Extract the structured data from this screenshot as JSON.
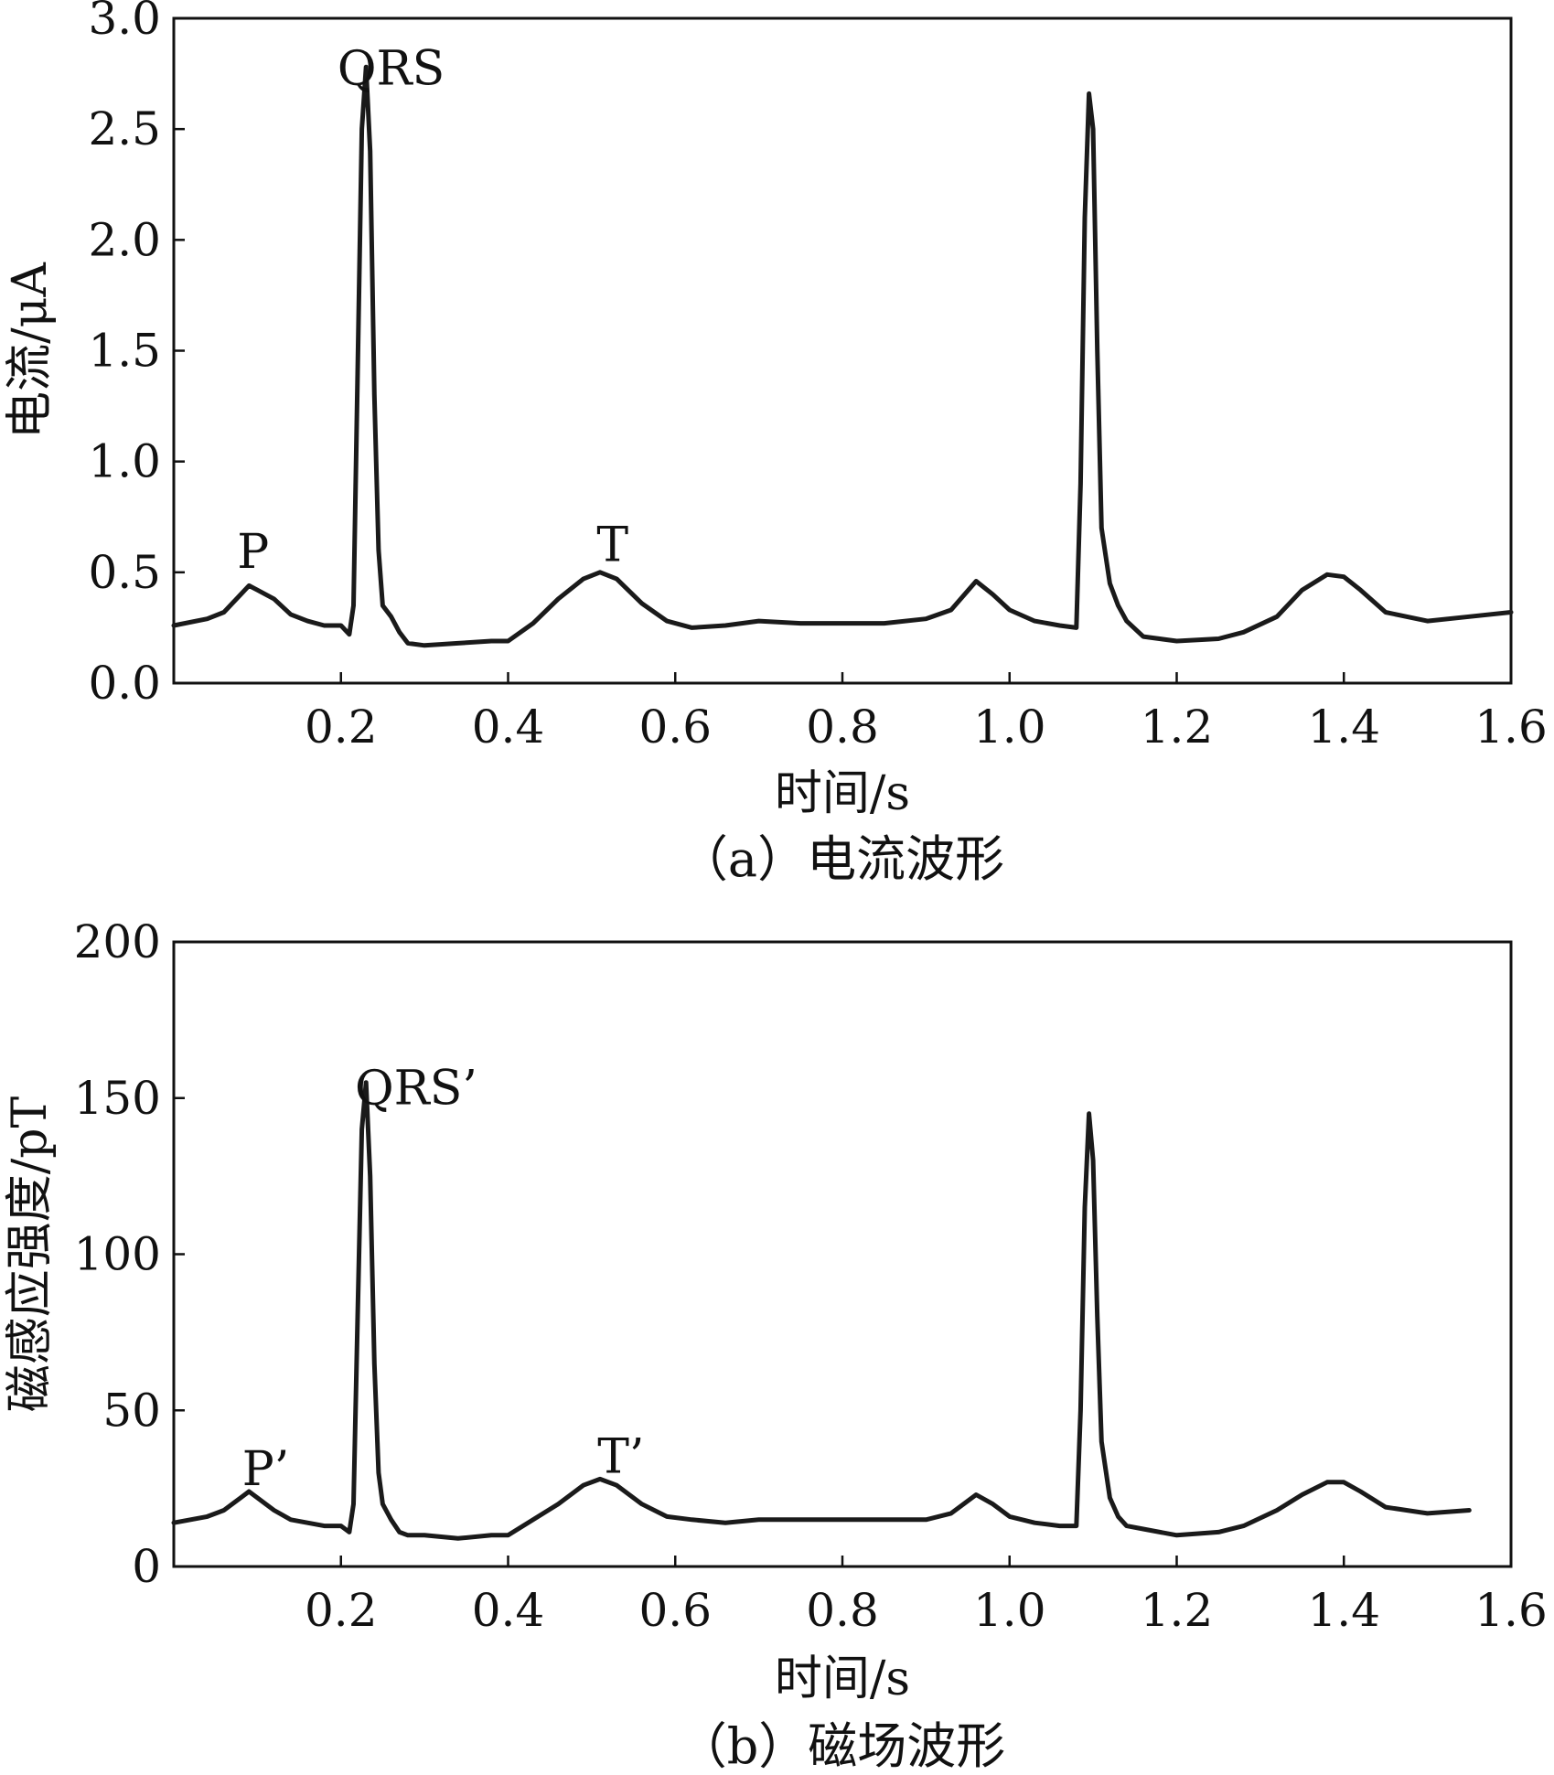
{
  "chart_data": [
    {
      "type": "line",
      "caption": "（a）电流波形",
      "xlabel": "时间/s",
      "ylabel": "电流/μA",
      "xlim": [
        0,
        1.6
      ],
      "ylim": [
        0,
        3.0
      ],
      "xticks": [
        0.2,
        0.4,
        0.6,
        0.8,
        1.0,
        1.2,
        1.4,
        1.6
      ],
      "xtick_labels": [
        "0.2",
        "0.4",
        "0.6",
        "0.8",
        "1.0",
        "1.2",
        "1.4",
        "1.6"
      ],
      "yticks": [
        0.0,
        0.5,
        1.0,
        1.5,
        2.0,
        2.5,
        3.0
      ],
      "ytick_labels": [
        "0.0",
        "0.5",
        "1.0",
        "1.5",
        "2.0",
        "2.5",
        "3.0"
      ],
      "grid": false,
      "annotations": [
        {
          "text": "P",
          "x": 0.095,
          "y": 0.52
        },
        {
          "text": "QRS",
          "x": 0.26,
          "y": 2.7
        },
        {
          "text": "T",
          "x": 0.525,
          "y": 0.55
        }
      ],
      "series": [
        {
          "x": [
            0.0,
            0.04,
            0.06,
            0.08,
            0.09,
            0.1,
            0.12,
            0.14,
            0.16,
            0.18,
            0.2,
            0.21,
            0.215,
            0.22,
            0.225,
            0.23,
            0.235,
            0.24,
            0.245,
            0.25,
            0.26,
            0.27,
            0.28,
            0.3,
            0.34,
            0.38,
            0.4,
            0.43,
            0.46,
            0.49,
            0.51,
            0.53,
            0.56,
            0.59,
            0.62,
            0.66,
            0.7,
            0.75,
            0.8,
            0.85,
            0.9,
            0.93,
            0.96,
            0.98,
            1.0,
            1.03,
            1.06,
            1.08,
            1.085,
            1.09,
            1.095,
            1.1,
            1.105,
            1.11,
            1.12,
            1.13,
            1.14,
            1.16,
            1.2,
            1.25,
            1.28,
            1.32,
            1.35,
            1.38,
            1.4,
            1.42,
            1.45,
            1.5,
            1.55,
            1.6
          ],
          "y": [
            0.26,
            0.29,
            0.32,
            0.4,
            0.44,
            0.42,
            0.38,
            0.31,
            0.28,
            0.26,
            0.26,
            0.22,
            0.35,
            1.4,
            2.5,
            2.78,
            2.4,
            1.3,
            0.6,
            0.35,
            0.3,
            0.23,
            0.18,
            0.17,
            0.18,
            0.19,
            0.19,
            0.27,
            0.38,
            0.47,
            0.5,
            0.47,
            0.36,
            0.28,
            0.25,
            0.26,
            0.28,
            0.27,
            0.27,
            0.27,
            0.29,
            0.33,
            0.46,
            0.4,
            0.33,
            0.28,
            0.26,
            0.25,
            0.9,
            2.1,
            2.66,
            2.5,
            1.5,
            0.7,
            0.45,
            0.35,
            0.28,
            0.21,
            0.19,
            0.2,
            0.23,
            0.3,
            0.42,
            0.49,
            0.48,
            0.42,
            0.32,
            0.28,
            0.3,
            0.32
          ]
        }
      ]
    },
    {
      "type": "line",
      "caption": "（b）磁场波形",
      "xlabel": "时间/s",
      "ylabel": "磁感应强度/pT",
      "xlim": [
        0,
        1.6
      ],
      "ylim": [
        0,
        200
      ],
      "xticks": [
        0.2,
        0.4,
        0.6,
        0.8,
        1.0,
        1.2,
        1.4,
        1.6
      ],
      "xtick_labels": [
        "0.2",
        "0.4",
        "0.6",
        "0.8",
        "1.0",
        "1.2",
        "1.4",
        "1.6"
      ],
      "yticks": [
        0,
        50,
        100,
        150,
        200
      ],
      "ytick_labels": [
        "0",
        "50",
        "100",
        "150",
        "200"
      ],
      "grid": false,
      "annotations": [
        {
          "text": "P’",
          "x": 0.11,
          "y": 26
        },
        {
          "text": "QRS’",
          "x": 0.29,
          "y": 148
        },
        {
          "text": "T’",
          "x": 0.535,
          "y": 30
        }
      ],
      "series": [
        {
          "x": [
            0.0,
            0.04,
            0.06,
            0.08,
            0.09,
            0.1,
            0.12,
            0.14,
            0.16,
            0.18,
            0.2,
            0.21,
            0.215,
            0.22,
            0.225,
            0.23,
            0.235,
            0.24,
            0.245,
            0.25,
            0.26,
            0.27,
            0.28,
            0.3,
            0.34,
            0.38,
            0.4,
            0.43,
            0.46,
            0.49,
            0.51,
            0.53,
            0.56,
            0.59,
            0.62,
            0.66,
            0.7,
            0.75,
            0.8,
            0.85,
            0.9,
            0.93,
            0.96,
            0.98,
            1.0,
            1.03,
            1.06,
            1.08,
            1.085,
            1.09,
            1.095,
            1.1,
            1.105,
            1.11,
            1.12,
            1.13,
            1.14,
            1.16,
            1.2,
            1.25,
            1.28,
            1.32,
            1.35,
            1.38,
            1.4,
            1.42,
            1.45,
            1.5,
            1.55
          ],
          "y": [
            14,
            16,
            18,
            22,
            24,
            22,
            18,
            15,
            14,
            13,
            13,
            11,
            20,
            80,
            140,
            155,
            125,
            65,
            30,
            20,
            15,
            11,
            10,
            10,
            9,
            10,
            10,
            15,
            20,
            26,
            28,
            26,
            20,
            16,
            15,
            14,
            15,
            15,
            15,
            15,
            15,
            17,
            23,
            20,
            16,
            14,
            13,
            13,
            50,
            115,
            145,
            130,
            80,
            40,
            22,
            16,
            13,
            12,
            10,
            11,
            13,
            18,
            23,
            27,
            27,
            24,
            19,
            17,
            18
          ]
        }
      ]
    }
  ]
}
